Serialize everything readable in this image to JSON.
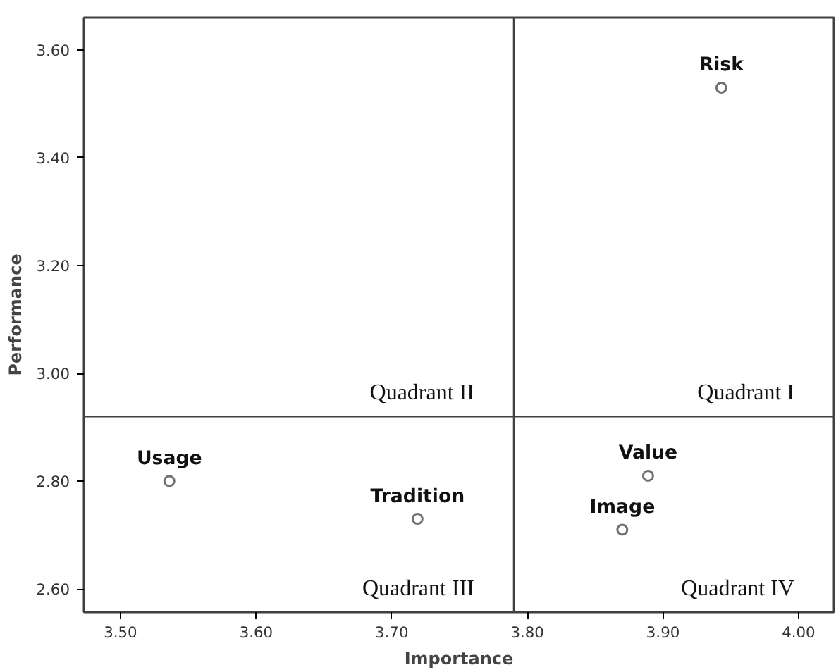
{
  "chart_data": {
    "type": "scatter",
    "xlabel": "Importance",
    "ylabel": "Performance",
    "x": [
      3.536,
      3.719,
      3.889,
      3.87,
      3.943
    ],
    "values": [
      2.8,
      2.73,
      2.81,
      2.71,
      3.53
    ],
    "color": "#707070",
    "marker": "circle",
    "grid": false,
    "xlim": [
      3.473,
      4.026
    ],
    "ylim": [
      2.557,
      3.66
    ],
    "xticks": [
      {
        "value": 3.5,
        "label": "3.50"
      },
      {
        "value": 3.6,
        "label": "3.60"
      },
      {
        "value": 3.7,
        "label": "3.70"
      },
      {
        "value": 3.8,
        "label": "3.80"
      },
      {
        "value": 3.9,
        "label": "3.90"
      },
      {
        "value": 4.0,
        "label": "4.00"
      }
    ],
    "yticks": [
      {
        "value": 2.6,
        "label": "2.60"
      },
      {
        "value": 2.8,
        "label": "2.80"
      },
      {
        "value": 3.0,
        "label": "3.00"
      },
      {
        "value": 3.2,
        "label": "3.20"
      },
      {
        "value": 3.4,
        "label": "3.40"
      },
      {
        "value": 3.6,
        "label": "3.60"
      }
    ],
    "ref_lines": [
      {
        "axis": "x",
        "value": 3.79,
        "color": "#404040"
      },
      {
        "axis": "y",
        "value": 2.92,
        "color": "#404040"
      }
    ],
    "annotations": [
      {
        "text": "Usage",
        "x": 3.536,
        "y": 2.8
      },
      {
        "text": "Tradition",
        "x": 3.719,
        "y": 2.73
      },
      {
        "text": "Value",
        "x": 3.889,
        "y": 2.81
      },
      {
        "text": "Image",
        "x": 3.87,
        "y": 2.71
      },
      {
        "text": "Risk",
        "x": 3.943,
        "y": 3.53
      },
      "Quadrant I",
      "Quadrant II",
      "Quadrant III",
      "Quadrant IV"
    ]
  }
}
